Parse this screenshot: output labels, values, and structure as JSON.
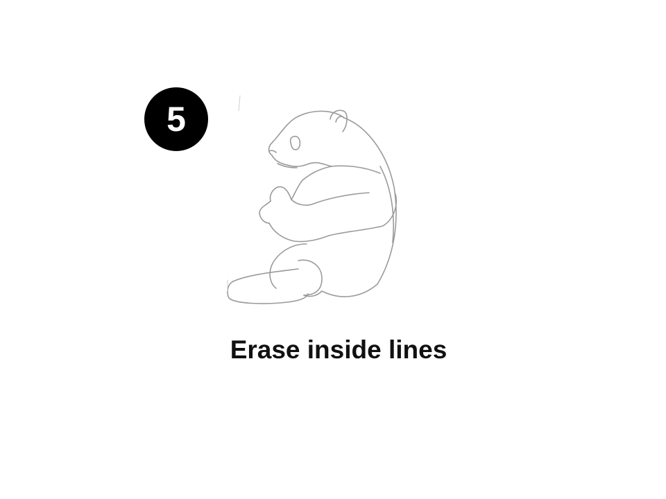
{
  "step": {
    "number": "5"
  },
  "illustration": {
    "subject": "panda-sketch",
    "line_color": "#9a9a9a"
  },
  "caption": {
    "text": "Erase inside lines"
  },
  "colors": {
    "background": "#ffffff",
    "badge": "#000000",
    "badge_text": "#ffffff",
    "caption_text": "#111111"
  }
}
